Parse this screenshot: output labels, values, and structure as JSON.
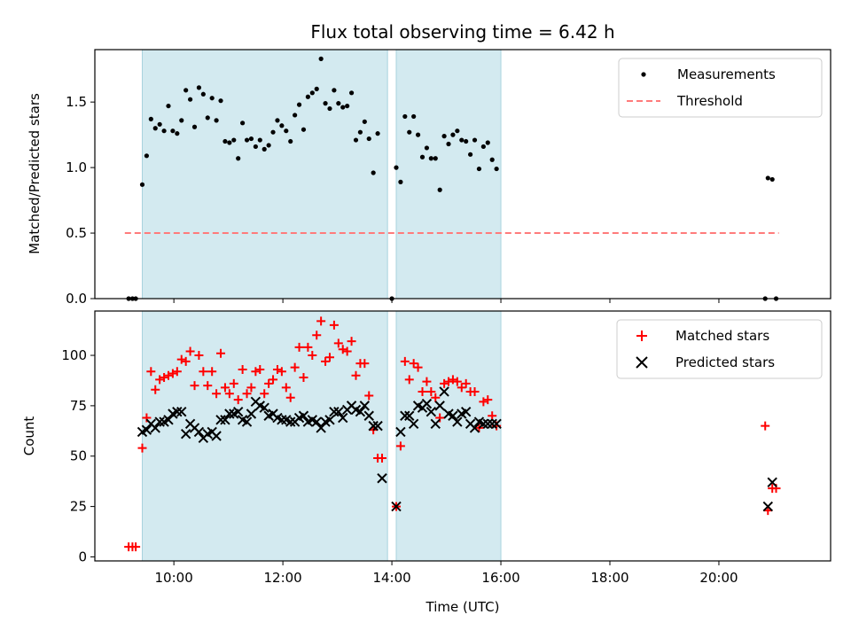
{
  "chart_data": [
    {
      "type": "scatter",
      "title": "Flux total observing time = 6.42 h",
      "xlabel": "",
      "ylabel": "Matched/Predicted stars",
      "xlim": [
        8.55,
        22.05
      ],
      "ylim": [
        0,
        1.9
      ],
      "x_tick_labels": [
        "10:00",
        "12:00",
        "14:00",
        "16:00",
        "18:00",
        "20:00"
      ],
      "x_ticks": [
        10,
        12,
        14,
        16,
        18,
        20
      ],
      "y_ticks": [
        0.0,
        0.5,
        1.0,
        1.5
      ],
      "y_tick_labels": [
        "0.0",
        "0.5",
        "1.0",
        "1.5"
      ],
      "shaded_intervals": [
        [
          9.42,
          13.92
        ],
        [
          14.08,
          16.0
        ]
      ],
      "shade_color": "#d3eaf0",
      "legend_position": "upper right",
      "series": [
        {
          "name": "Measurements",
          "kind": "points",
          "color": "#000000",
          "points": [
            [
              9.17,
              0.0
            ],
            [
              9.24,
              0.0
            ],
            [
              9.3,
              0.0
            ],
            [
              9.42,
              0.87
            ],
            [
              9.5,
              1.09
            ],
            [
              9.58,
              1.37
            ],
            [
              9.66,
              1.3
            ],
            [
              9.74,
              1.33
            ],
            [
              9.82,
              1.28
            ],
            [
              9.9,
              1.47
            ],
            [
              9.98,
              1.28
            ],
            [
              10.06,
              1.26
            ],
            [
              10.14,
              1.36
            ],
            [
              10.22,
              1.59
            ],
            [
              10.3,
              1.52
            ],
            [
              10.38,
              1.31
            ],
            [
              10.46,
              1.61
            ],
            [
              10.54,
              1.56
            ],
            [
              10.62,
              1.38
            ],
            [
              10.7,
              1.53
            ],
            [
              10.78,
              1.36
            ],
            [
              10.86,
              1.51
            ],
            [
              10.94,
              1.2
            ],
            [
              11.02,
              1.19
            ],
            [
              11.1,
              1.21
            ],
            [
              11.18,
              1.07
            ],
            [
              11.26,
              1.34
            ],
            [
              11.34,
              1.21
            ],
            [
              11.42,
              1.22
            ],
            [
              11.5,
              1.16
            ],
            [
              11.58,
              1.21
            ],
            [
              11.66,
              1.14
            ],
            [
              11.74,
              1.17
            ],
            [
              11.82,
              1.27
            ],
            [
              11.9,
              1.36
            ],
            [
              11.98,
              1.32
            ],
            [
              12.06,
              1.28
            ],
            [
              12.14,
              1.2
            ],
            [
              12.22,
              1.4
            ],
            [
              12.3,
              1.48
            ],
            [
              12.38,
              1.29
            ],
            [
              12.46,
              1.54
            ],
            [
              12.54,
              1.57
            ],
            [
              12.62,
              1.6
            ],
            [
              12.7,
              1.83
            ],
            [
              12.78,
              1.49
            ],
            [
              12.86,
              1.45
            ],
            [
              12.94,
              1.59
            ],
            [
              13.02,
              1.49
            ],
            [
              13.1,
              1.46
            ],
            [
              13.18,
              1.47
            ],
            [
              13.26,
              1.57
            ],
            [
              13.34,
              1.21
            ],
            [
              13.42,
              1.27
            ],
            [
              13.5,
              1.35
            ],
            [
              13.58,
              1.22
            ],
            [
              13.66,
              0.96
            ],
            [
              13.74,
              1.26
            ],
            [
              14.0,
              0.0
            ],
            [
              14.08,
              1.0
            ],
            [
              14.16,
              0.89
            ],
            [
              14.24,
              1.39
            ],
            [
              14.32,
              1.27
            ],
            [
              14.4,
              1.39
            ],
            [
              14.48,
              1.25
            ],
            [
              14.56,
              1.08
            ],
            [
              14.64,
              1.15
            ],
            [
              14.72,
              1.07
            ],
            [
              14.8,
              1.07
            ],
            [
              14.88,
              0.83
            ],
            [
              14.96,
              1.24
            ],
            [
              15.04,
              1.18
            ],
            [
              15.12,
              1.25
            ],
            [
              15.2,
              1.28
            ],
            [
              15.28,
              1.21
            ],
            [
              15.36,
              1.2
            ],
            [
              15.44,
              1.1
            ],
            [
              15.52,
              1.21
            ],
            [
              15.6,
              0.99
            ],
            [
              15.68,
              1.16
            ],
            [
              15.76,
              1.19
            ],
            [
              15.84,
              1.06
            ],
            [
              15.92,
              0.99
            ],
            [
              20.85,
              0.0
            ],
            [
              20.9,
              0.92
            ],
            [
              20.98,
              0.91
            ],
            [
              21.05,
              0.0
            ]
          ]
        },
        {
          "name": "Threshold",
          "kind": "dashed-line",
          "color": "#ff7b7b",
          "x": [
            9.1,
            21.1
          ],
          "y": [
            0.5,
            0.5
          ]
        }
      ]
    },
    {
      "type": "scatter",
      "title": "",
      "xlabel": "Time (UTC)",
      "ylabel": "Count",
      "xlim": [
        8.55,
        22.05
      ],
      "ylim": [
        -2,
        122
      ],
      "x_tick_labels": [
        "10:00",
        "12:00",
        "14:00",
        "16:00",
        "18:00",
        "20:00"
      ],
      "x_ticks": [
        10,
        12,
        14,
        16,
        18,
        20
      ],
      "y_ticks": [
        0,
        25,
        50,
        75,
        100
      ],
      "y_tick_labels": [
        "0",
        "25",
        "50",
        "75",
        "100"
      ],
      "shaded_intervals": [
        [
          9.42,
          13.92
        ],
        [
          14.08,
          16.0
        ]
      ],
      "shade_color": "#d3eaf0",
      "legend_position": "upper right",
      "series": [
        {
          "name": "Matched stars",
          "kind": "plus",
          "color": "#ff0000",
          "points": [
            [
              9.17,
              5
            ],
            [
              9.24,
              5
            ],
            [
              9.3,
              5
            ],
            [
              9.42,
              54
            ],
            [
              9.5,
              69
            ],
            [
              9.58,
              92
            ],
            [
              9.66,
              83
            ],
            [
              9.74,
              88
            ],
            [
              9.82,
              89
            ],
            [
              9.9,
              90
            ],
            [
              9.98,
              91
            ],
            [
              10.06,
              92
            ],
            [
              10.14,
              98
            ],
            [
              10.22,
              97
            ],
            [
              10.3,
              102
            ],
            [
              10.38,
              85
            ],
            [
              10.46,
              100
            ],
            [
              10.54,
              92
            ],
            [
              10.62,
              85
            ],
            [
              10.7,
              92
            ],
            [
              10.78,
              81
            ],
            [
              10.86,
              101
            ],
            [
              10.94,
              84
            ],
            [
              11.02,
              81
            ],
            [
              11.1,
              86
            ],
            [
              11.18,
              78
            ],
            [
              11.26,
              93
            ],
            [
              11.34,
              81
            ],
            [
              11.42,
              84
            ],
            [
              11.5,
              92
            ],
            [
              11.58,
              93
            ],
            [
              11.66,
              81
            ],
            [
              11.74,
              86
            ],
            [
              11.82,
              88
            ],
            [
              11.9,
              93
            ],
            [
              11.98,
              92
            ],
            [
              12.06,
              84
            ],
            [
              12.14,
              79
            ],
            [
              12.22,
              94
            ],
            [
              12.3,
              104
            ],
            [
              12.38,
              89
            ],
            [
              12.46,
              104
            ],
            [
              12.54,
              100
            ],
            [
              12.62,
              110
            ],
            [
              12.7,
              117
            ],
            [
              12.78,
              97
            ],
            [
              12.86,
              99
            ],
            [
              12.94,
              115
            ],
            [
              13.02,
              106
            ],
            [
              13.1,
              103
            ],
            [
              13.18,
              102
            ],
            [
              13.26,
              107
            ],
            [
              13.34,
              90
            ],
            [
              13.42,
              96
            ],
            [
              13.5,
              96
            ],
            [
              13.58,
              80
            ],
            [
              13.66,
              63
            ],
            [
              13.74,
              49
            ],
            [
              13.82,
              49
            ],
            [
              14.08,
              25
            ],
            [
              14.16,
              55
            ],
            [
              14.24,
              97
            ],
            [
              14.32,
              88
            ],
            [
              14.4,
              96
            ],
            [
              14.48,
              94
            ],
            [
              14.56,
              82
            ],
            [
              14.64,
              87
            ],
            [
              14.72,
              82
            ],
            [
              14.8,
              79
            ],
            [
              14.88,
              69
            ],
            [
              14.96,
              86
            ],
            [
              15.04,
              87
            ],
            [
              15.12,
              88
            ],
            [
              15.2,
              87
            ],
            [
              15.28,
              84
            ],
            [
              15.36,
              86
            ],
            [
              15.44,
              82
            ],
            [
              15.52,
              82
            ],
            [
              15.6,
              64
            ],
            [
              15.68,
              77
            ],
            [
              15.76,
              78
            ],
            [
              15.84,
              70
            ],
            [
              15.92,
              65
            ],
            [
              20.85,
              65
            ],
            [
              20.9,
              23
            ],
            [
              20.98,
              34
            ],
            [
              21.05,
              34
            ]
          ]
        },
        {
          "name": "Predicted stars",
          "kind": "x",
          "color": "#000000",
          "points": [
            [
              9.42,
              62
            ],
            [
              9.5,
              63
            ],
            [
              9.58,
              66
            ],
            [
              9.66,
              64
            ],
            [
              9.74,
              67
            ],
            [
              9.82,
              67
            ],
            [
              9.9,
              68
            ],
            [
              9.98,
              71
            ],
            [
              10.06,
              72
            ],
            [
              10.14,
              72
            ],
            [
              10.22,
              61
            ],
            [
              10.3,
              66
            ],
            [
              10.38,
              64
            ],
            [
              10.46,
              62
            ],
            [
              10.54,
              59
            ],
            [
              10.62,
              61
            ],
            [
              10.7,
              62
            ],
            [
              10.78,
              60
            ],
            [
              10.86,
              68
            ],
            [
              10.94,
              68
            ],
            [
              11.02,
              71
            ],
            [
              11.1,
              71
            ],
            [
              11.18,
              72
            ],
            [
              11.26,
              68
            ],
            [
              11.34,
              67
            ],
            [
              11.42,
              71
            ],
            [
              11.5,
              77
            ],
            [
              11.58,
              75
            ],
            [
              11.66,
              74
            ],
            [
              11.74,
              70
            ],
            [
              11.82,
              71
            ],
            [
              11.9,
              69
            ],
            [
              11.98,
              68
            ],
            [
              12.06,
              68
            ],
            [
              12.14,
              67
            ],
            [
              12.22,
              67
            ],
            [
              12.3,
              69
            ],
            [
              12.38,
              70
            ],
            [
              12.46,
              67
            ],
            [
              12.54,
              68
            ],
            [
              12.62,
              67
            ],
            [
              12.7,
              64
            ],
            [
              12.78,
              67
            ],
            [
              12.86,
              68
            ],
            [
              12.94,
              72
            ],
            [
              13.02,
              72
            ],
            [
              13.1,
              69
            ],
            [
              13.18,
              73
            ],
            [
              13.26,
              75
            ],
            [
              13.34,
              73
            ],
            [
              13.42,
              72
            ],
            [
              13.5,
              75
            ],
            [
              13.58,
              70
            ],
            [
              13.66,
              65
            ],
            [
              13.74,
              65
            ],
            [
              13.82,
              39
            ],
            [
              14.08,
              25
            ],
            [
              14.16,
              62
            ],
            [
              14.24,
              70
            ],
            [
              14.32,
              70
            ],
            [
              14.4,
              66
            ],
            [
              14.48,
              75
            ],
            [
              14.56,
              74
            ],
            [
              14.64,
              76
            ],
            [
              14.72,
              72
            ],
            [
              14.8,
              66
            ],
            [
              14.88,
              75
            ],
            [
              14.96,
              82
            ],
            [
              15.04,
              71
            ],
            [
              15.12,
              70
            ],
            [
              15.2,
              67
            ],
            [
              15.28,
              71
            ],
            [
              15.36,
              72
            ],
            [
              15.44,
              66
            ],
            [
              15.52,
              64
            ],
            [
              15.6,
              67
            ],
            [
              15.68,
              66
            ],
            [
              15.76,
              66
            ],
            [
              15.84,
              66
            ],
            [
              15.92,
              66
            ],
            [
              20.9,
              25
            ],
            [
              20.98,
              37
            ]
          ]
        }
      ]
    }
  ]
}
